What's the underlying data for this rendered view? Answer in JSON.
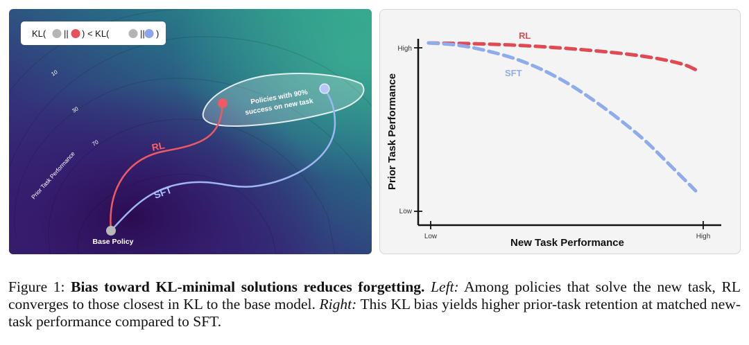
{
  "left_panel": {
    "legend": {
      "prefix": "KL(",
      "middle": ") < KL(",
      "suffix": ")",
      "separator": "||",
      "colors": {
        "base": "#b5b5b5",
        "rl": "#e8505b",
        "sft": "#8aa6f2"
      }
    },
    "contour_labels": [
      "10",
      "30",
      "70"
    ],
    "axis_label": "Prior Task Performance",
    "region_label_line1": "Policies with 90%",
    "region_label_line2": "success on new task",
    "rl_label": "RL",
    "sft_label": "SFT",
    "base_label": "Base Policy"
  },
  "chart_data": {
    "type": "line",
    "title": "",
    "xlabel": "New Task Performance",
    "ylabel": "Prior Task Performance",
    "x_ticks": [
      "Low",
      "High"
    ],
    "y_ticks": [
      "Low",
      "High"
    ],
    "xlim": [
      0,
      1
    ],
    "ylim": [
      0,
      1
    ],
    "series": [
      {
        "name": "RL",
        "color": "#e04a52",
        "x": [
          0,
          0.2,
          0.4,
          0.6,
          0.8,
          0.95,
          1.0
        ],
        "y": [
          1.0,
          0.995,
          0.98,
          0.955,
          0.92,
          0.87,
          0.83
        ]
      },
      {
        "name": "SFT",
        "color": "#8eabec",
        "x": [
          0,
          0.1,
          0.2,
          0.35,
          0.5,
          0.65,
          0.8,
          0.9,
          1.0
        ],
        "y": [
          1.0,
          0.99,
          0.96,
          0.89,
          0.77,
          0.6,
          0.4,
          0.23,
          0.06
        ]
      }
    ]
  },
  "caption": {
    "figure_label": "Figure 1:",
    "bold_title": "Bias toward KL-minimal solutions reduces forgetting.",
    "left_label": "Left:",
    "left_text": "Among policies that solve the new task, RL converges to those closest in KL to the base model.",
    "right_label": "Right:",
    "right_text": "This KL bias yields higher prior-task retention at matched new-task performance compared to SFT."
  }
}
